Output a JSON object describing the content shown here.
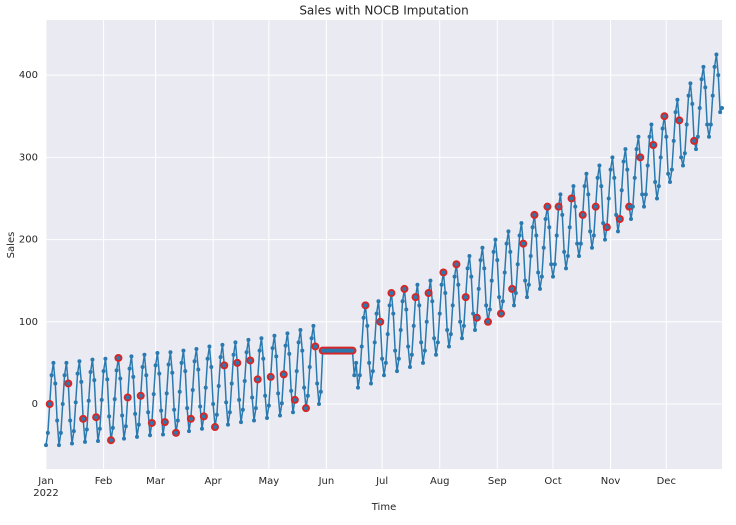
{
  "chart_data": {
    "type": "line",
    "title": "Sales with NOCB Imputation",
    "xlabel": "Time",
    "ylabel": "Sales",
    "x_sublabel": "2022",
    "color": "#2a7ab0",
    "imputed_color": "#d62728",
    "grid": true,
    "xlim": [
      0,
      364
    ],
    "xticks": [
      {
        "value": 0,
        "label": "Jan"
      },
      {
        "value": 31,
        "label": "Feb"
      },
      {
        "value": 59,
        "label": "Mar"
      },
      {
        "value": 90,
        "label": "Apr"
      },
      {
        "value": 120,
        "label": "May"
      },
      {
        "value": 151,
        "label": "Jun"
      },
      {
        "value": 181,
        "label": "Jul"
      },
      {
        "value": 212,
        "label": "Aug"
      },
      {
        "value": 243,
        "label": "Sep"
      },
      {
        "value": 273,
        "label": "Oct"
      },
      {
        "value": 304,
        "label": "Nov"
      },
      {
        "value": 334,
        "label": "Dec"
      }
    ],
    "ylim": [
      -79,
      467
    ],
    "yticks": [
      0,
      100,
      200,
      300,
      400
    ],
    "values": [
      -50,
      -35,
      0,
      35,
      50,
      25,
      -20,
      -50,
      -35,
      0,
      35,
      50,
      25,
      -20,
      -48,
      -33,
      2,
      37,
      52,
      27,
      -18,
      -46,
      -31,
      4,
      39,
      54,
      29,
      -16,
      -45,
      -30,
      5,
      40,
      55,
      30,
      -15,
      -44,
      -29,
      6,
      41,
      56,
      31,
      -14,
      -42,
      -27,
      8,
      43,
      58,
      33,
      -12,
      -40,
      -25,
      10,
      45,
      60,
      35,
      -10,
      -38,
      -23,
      12,
      47,
      62,
      37,
      -8,
      -37,
      -22,
      13,
      48,
      63,
      38,
      -7,
      -35,
      -20,
      15,
      50,
      65,
      40,
      -5,
      -33,
      -18,
      17,
      52,
      67,
      42,
      -3,
      -30,
      -15,
      20,
      55,
      70,
      45,
      0,
      -28,
      -13,
      22,
      57,
      72,
      47,
      2,
      -25,
      -10,
      25,
      60,
      75,
      50,
      5,
      -22,
      -7,
      28,
      63,
      78,
      53,
      8,
      -20,
      -5,
      30,
      65,
      80,
      55,
      10,
      -17,
      -2,
      33,
      68,
      83,
      58,
      13,
      -14,
      1,
      36,
      71,
      86,
      61,
      16,
      -10,
      5,
      40,
      75,
      90,
      65,
      20,
      -5,
      10,
      45,
      80,
      95,
      70,
      25,
      0,
      15,
      65,
      65,
      65,
      65,
      65,
      65,
      65,
      65,
      65,
      65,
      65,
      65,
      65,
      65,
      65,
      65,
      65,
      35,
      50,
      20,
      35,
      70,
      105,
      120,
      95,
      50,
      25,
      40,
      75,
      110,
      125,
      100,
      55,
      35,
      50,
      85,
      120,
      135,
      110,
      65,
      40,
      55,
      90,
      125,
      140,
      115,
      70,
      45,
      60,
      95,
      130,
      145,
      120,
      75,
      50,
      65,
      100,
      135,
      150,
      125,
      80,
      60,
      75,
      110,
      145,
      160,
      135,
      90,
      70,
      85,
      120,
      155,
      170,
      145,
      100,
      80,
      95,
      130,
      165,
      180,
      155,
      110,
      90,
      105,
      140,
      175,
      190,
      165,
      120,
      100,
      115,
      150,
      185,
      200,
      175,
      130,
      110,
      125,
      160,
      195,
      210,
      185,
      140,
      120,
      135,
      170,
      205,
      220,
      195,
      150,
      130,
      145,
      180,
      215,
      230,
      205,
      160,
      140,
      155,
      190,
      225,
      240,
      215,
      170,
      155,
      170,
      205,
      240,
      255,
      230,
      185,
      165,
      180,
      215,
      250,
      265,
      240,
      195,
      180,
      195,
      230,
      265,
      280,
      255,
      210,
      190,
      205,
      240,
      275,
      290,
      265,
      220,
      200,
      215,
      250,
      285,
      300,
      275,
      230,
      210,
      225,
      260,
      295,
      310,
      285,
      240,
      225,
      240,
      275,
      310,
      325,
      300,
      255,
      240,
      255,
      290,
      325,
      340,
      315,
      270,
      250,
      265,
      300,
      335,
      350,
      325,
      280,
      270,
      285,
      320,
      355,
      370,
      345,
      300,
      290,
      305,
      340,
      375,
      390,
      365,
      320,
      310,
      325,
      360,
      395,
      410,
      385,
      340,
      325,
      340,
      375,
      410,
      425,
      400,
      355,
      360
    ],
    "imputed": [
      2,
      12,
      20,
      27,
      35,
      39,
      44,
      51,
      57,
      64,
      70,
      78,
      85,
      91,
      96,
      103,
      110,
      114,
      121,
      128,
      134,
      140,
      145,
      149,
      150,
      151,
      152,
      153,
      154,
      155,
      156,
      157,
      158,
      159,
      160,
      161,
      162,
      163,
      164,
      165,
      172,
      180,
      186,
      193,
      199,
      206,
      214,
      221,
      226,
      232,
      238,
      245,
      251,
      257,
      263,
      270,
      276,
      283,
      289,
      296,
      302,
      309,
      314,
      320,
      327,
      333,
      341,
      349
    ]
  }
}
